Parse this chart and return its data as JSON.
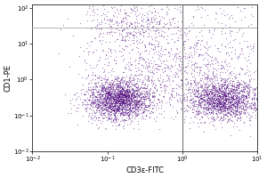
{
  "title": "",
  "xlabel": "CD3ε-FITC",
  "ylabel": "CD1-PE",
  "dot_color": "#4a007a",
  "dot_alpha": 0.5,
  "dot_size": 0.8,
  "background_color": "#ffffff",
  "plot_bg_color": "#ffffff",
  "gate_x_log10": 0.0,
  "gate_y_log10": 1.45,
  "gate_x_color": "#777777",
  "gate_y_color": "#aaaaaa",
  "seed": 42,
  "clusters": [
    {
      "n": 2200,
      "x_mu": -0.85,
      "x_sig": 0.22,
      "y_mu": -0.55,
      "y_sig": 0.28
    },
    {
      "n": 1800,
      "x_mu": 0.55,
      "x_sig": 0.25,
      "y_mu": -0.55,
      "y_sig": 0.28
    },
    {
      "n": 300,
      "x_mu": -0.65,
      "x_sig": 0.3,
      "y_mu": 1.5,
      "y_sig": 0.3
    },
    {
      "n": 200,
      "x_mu": -0.4,
      "x_sig": 0.5,
      "y_mu": 0.5,
      "y_sig": 0.45
    }
  ],
  "scatter_n": 500,
  "xlim_log": [
    -1.35,
    1.0
  ],
  "ylim_log": [
    -1.0,
    2.1
  ],
  "xtick_locs": [
    0.01,
    0.1,
    1.0,
    10.0
  ],
  "ytick_locs": [
    0.01,
    0.1,
    1.0,
    10.0,
    100.0
  ],
  "xtick_labels": [
    "10^-2",
    "10^-1",
    "10^0",
    "10^1"
  ],
  "ytick_labels": [
    "10^-2",
    "10^-1",
    "10^0",
    "10^1",
    "10^2"
  ]
}
